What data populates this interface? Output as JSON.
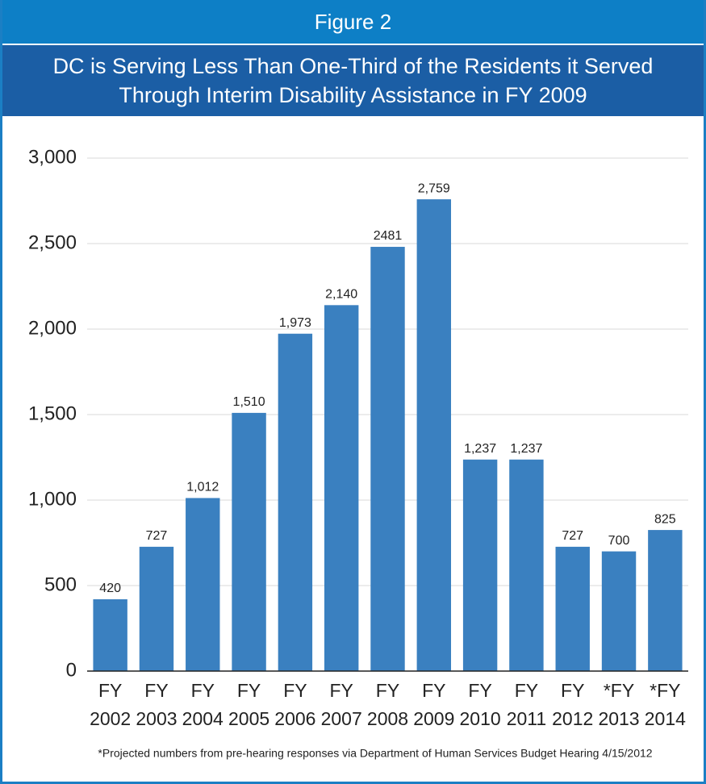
{
  "chart_data": {
    "type": "bar",
    "figure_label": "Figure 2",
    "title": "DC is Serving Less Than One-Third of the Residents it Served Through Interim Disability Assistance in FY 2009",
    "categories": [
      "FY 2002",
      "FY 2003",
      "FY 2004",
      "FY 2005",
      "FY 2006",
      "FY 2007",
      "FY 2008",
      "FY 2009",
      "FY 2010",
      "FY 2011",
      "FY 2012",
      "*FY 2013",
      "*FY 2014"
    ],
    "values": [
      420,
      727,
      1012,
      1510,
      1973,
      2140,
      2481,
      2759,
      1237,
      1237,
      727,
      700,
      825
    ],
    "value_labels": [
      "420",
      "727",
      "1,012",
      "1,510",
      "1,973",
      "2,140",
      "2481",
      "2,759",
      "1,237",
      "1,237",
      "727",
      "700",
      "825"
    ],
    "color": "#3a80c0",
    "ylim": [
      0,
      3000
    ],
    "yticks": [
      0,
      500,
      {
        "value": 1000,
        "label": "1,000"
      },
      {
        "value": 1500,
        "label": "1,500"
      },
      {
        "value": 2000,
        "label": "2,000"
      },
      {
        "value": 2500,
        "label": "2,500"
      },
      {
        "value": 3000,
        "label": "3,000"
      }
    ],
    "grid": true,
    "footnote": "*Projected numbers from pre-hearing responses via Department of Human Services Budget Hearing 4/15/2012"
  }
}
